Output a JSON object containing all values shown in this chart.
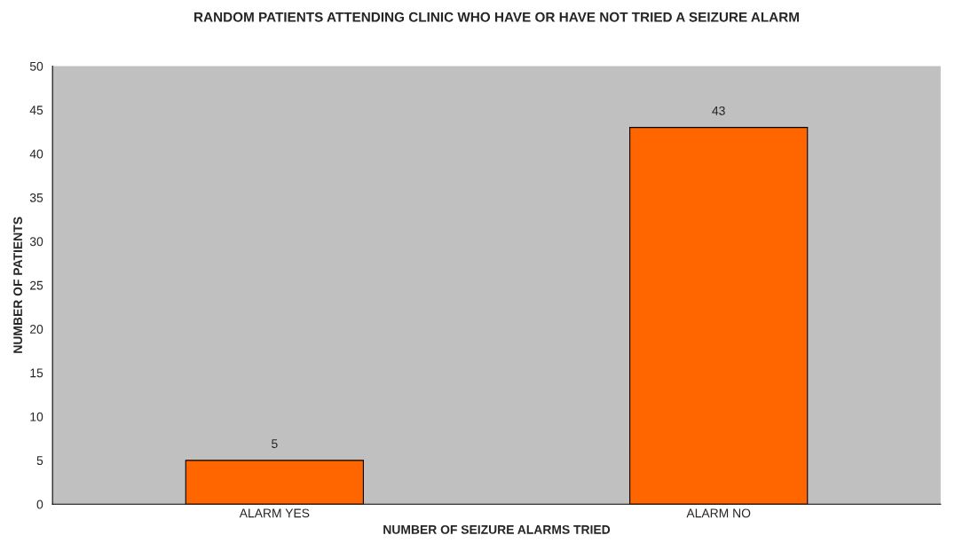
{
  "chart_data": {
    "type": "bar",
    "title": "RANDOM PATIENTS ATTENDING CLINIC WHO HAVE OR HAVE NOT TRIED A SEIZURE ALARM",
    "xlabel": "NUMBER OF SEIZURE ALARMS TRIED",
    "ylabel": "NUMBER OF PATIENTS",
    "categories": [
      "ALARM YES",
      "ALARM NO"
    ],
    "values": [
      5,
      43
    ],
    "color": "#ff6600",
    "ylim": [
      0,
      50
    ],
    "yticks": [
      0,
      5,
      10,
      15,
      20,
      25,
      30,
      35,
      40,
      45,
      50
    ],
    "grid": false,
    "data_labels": true
  }
}
